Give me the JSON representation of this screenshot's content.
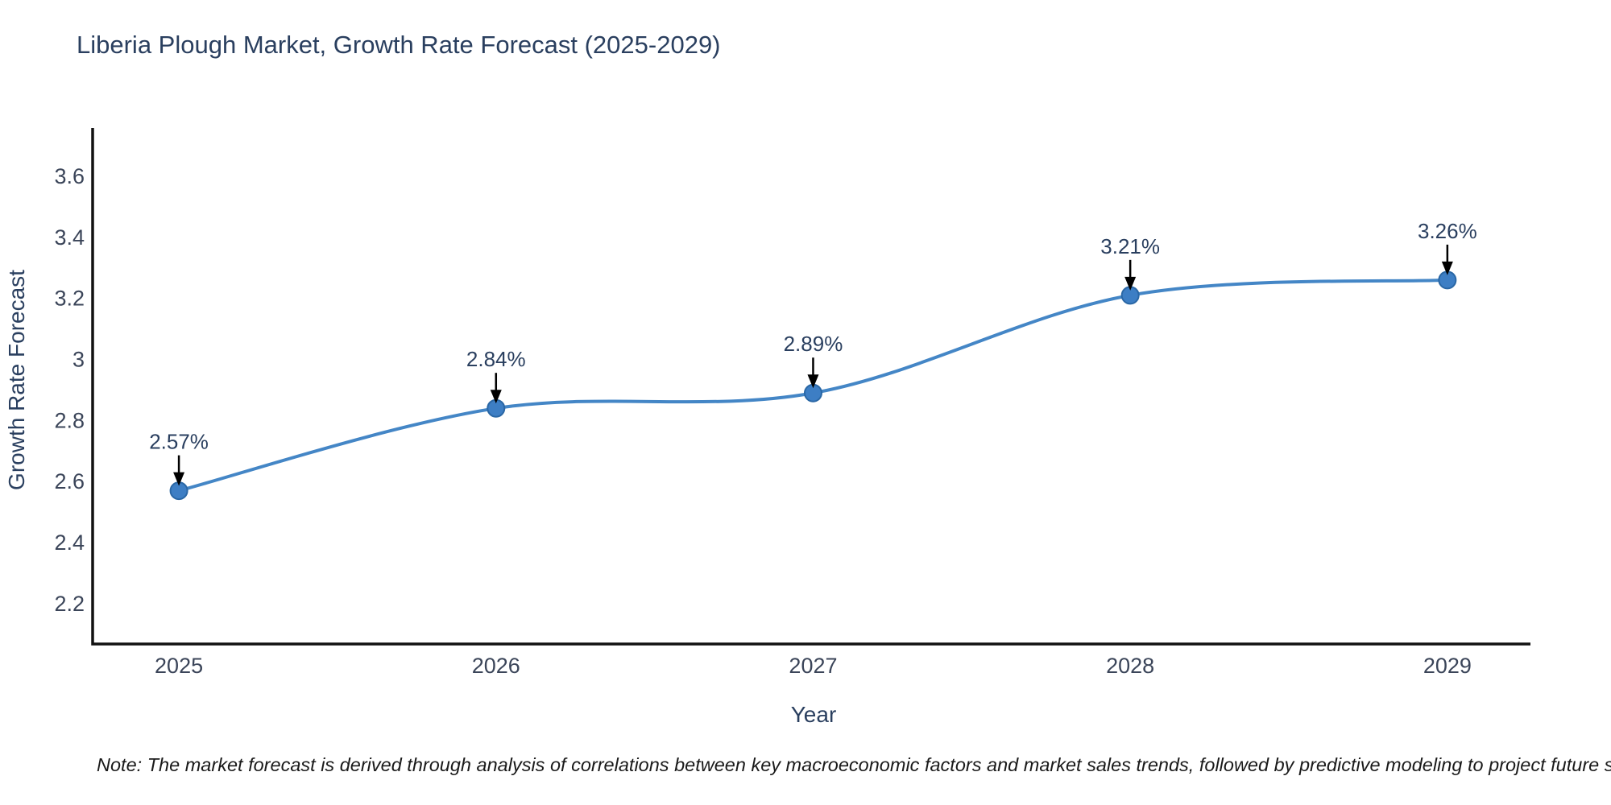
{
  "chart_data": {
    "type": "line",
    "title": "Liberia Plough Market, Growth Rate Forecast (2025-2029)",
    "xlabel": "Year",
    "ylabel": "Growth Rate Forecast",
    "x": [
      2025,
      2026,
      2027,
      2028,
      2029
    ],
    "y": [
      2.57,
      2.84,
      2.89,
      3.21,
      3.26
    ],
    "point_labels": [
      "2.57%",
      "2.84%",
      "2.89%",
      "3.21%",
      "3.26%"
    ],
    "xtick_labels": [
      "2025",
      "2026",
      "2027",
      "2028",
      "2029"
    ],
    "yticks": [
      2.2,
      2.4,
      2.6,
      2.8,
      3,
      3.2,
      3.4,
      3.6
    ],
    "ytick_labels": [
      "2.2",
      "2.4",
      "2.6",
      "2.8",
      "3",
      "3.2",
      "3.4",
      "3.6"
    ],
    "xlim": [
      2024.728,
      2029.262
    ],
    "ylim": [
      2.068,
      3.758
    ],
    "grid": false,
    "legend": false,
    "line_shape": "spline",
    "colors": {
      "line": "#4486c6",
      "marker_fill": "#3d7ec4",
      "marker_edge": "#2a67a5",
      "axis_line": "#111111",
      "annotation_arrow": "#000000",
      "title_text": "#2a3f5f",
      "tick_text": "#3b4559"
    },
    "note": "Note: The market forecast is derived through analysis of correlations between key macroeconomic factors and market sales trends, followed by predictive modeling to project future sales"
  }
}
